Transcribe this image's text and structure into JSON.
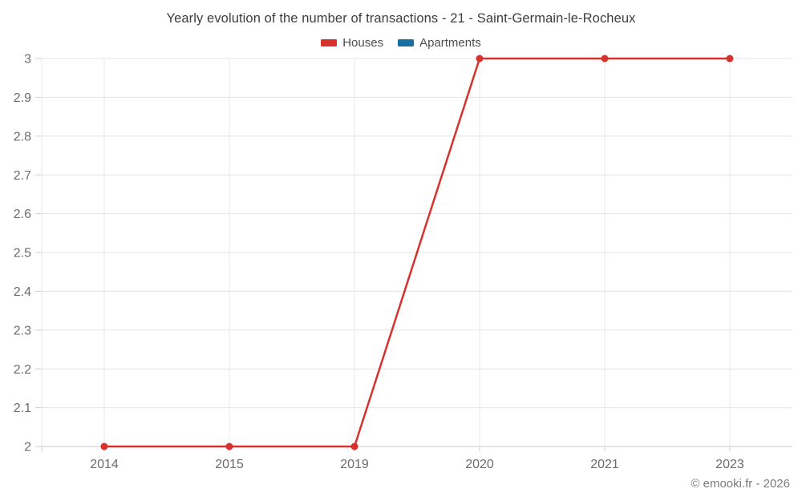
{
  "chart_data": {
    "type": "line",
    "title": "Yearly evolution of the number of transactions - 21 - Saint-Germain-le-Rocheux",
    "categories": [
      "2014",
      "2015",
      "2019",
      "2020",
      "2021",
      "2023"
    ],
    "series": [
      {
        "name": "Houses",
        "color": "#d7312e",
        "values": [
          2,
          2,
          2,
          3,
          3,
          3
        ]
      },
      {
        "name": "Apartments",
        "color": "#1372a3",
        "values": [
          null,
          null,
          null,
          null,
          null,
          null
        ]
      }
    ],
    "ylim": [
      2,
      3
    ],
    "ytick_labels": [
      "2",
      "2.1",
      "2.2",
      "2.3",
      "2.4",
      "2.5",
      "2.6",
      "2.7",
      "2.8",
      "2.9",
      "3"
    ],
    "xlabel": "",
    "ylabel": "",
    "grid": true,
    "legend_position": "top"
  },
  "footer": {
    "copyright": "© emooki.fr - 2026"
  },
  "colors": {
    "background": "#ffffff",
    "grid_horizontal": "#e4e4e4",
    "grid_vertical": "#eaeaea",
    "axis_baseline": "#c9c9c9",
    "tick_mark": "#cfcfcf",
    "axis_text": "#6b6b6b",
    "title_text": "#3d3d3d",
    "legend_text": "#4d4d4d",
    "copyright_text": "#7d7d7d"
  }
}
